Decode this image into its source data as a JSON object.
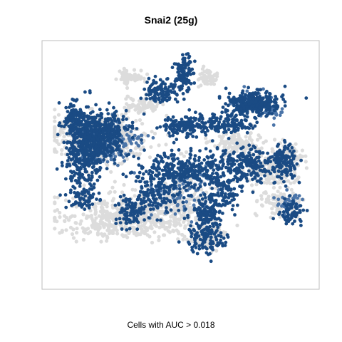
{
  "chart_data": {
    "type": "scatter",
    "title": "Snai2 (25g)",
    "caption": "Cells with AUC > 0.018",
    "xlabel": "",
    "ylabel": "",
    "axes_visible": false,
    "grid": false,
    "colors": {
      "high": "#1a4b84",
      "mid": "#4a74a8",
      "low": "#dcdcdc",
      "frame": "#bdbdbd"
    },
    "series": [
      {
        "color": "#dcdcdc",
        "regions": [
          [
            0.18,
            0.38,
            0.16,
            0.08,
            500
          ],
          [
            0.3,
            0.72,
            0.22,
            0.08,
            600
          ],
          [
            0.5,
            0.62,
            0.08,
            0.12,
            150
          ],
          [
            0.72,
            0.4,
            0.08,
            0.05,
            120
          ],
          [
            0.85,
            0.52,
            0.08,
            0.06,
            160
          ],
          [
            0.88,
            0.66,
            0.06,
            0.05,
            100
          ],
          [
            0.6,
            0.8,
            0.06,
            0.06,
            110
          ],
          [
            0.35,
            0.24,
            0.06,
            0.03,
            80
          ],
          [
            0.3,
            0.12,
            0.04,
            0.03,
            60
          ],
          [
            0.6,
            0.12,
            0.04,
            0.03,
            60
          ],
          [
            0.92,
            0.46,
            0.04,
            0.04,
            60
          ]
        ]
      },
      {
        "color": "#4a74a8",
        "regions": [
          [
            0.22,
            0.4,
            0.1,
            0.08,
            150
          ],
          [
            0.75,
            0.23,
            0.05,
            0.04,
            60
          ],
          [
            0.92,
            0.66,
            0.05,
            0.04,
            40
          ],
          [
            0.85,
            0.26,
            0.04,
            0.03,
            40
          ],
          [
            0.5,
            0.6,
            0.1,
            0.1,
            80
          ]
        ]
      },
      {
        "color": "#1a4b84",
        "regions": [
          [
            0.12,
            0.44,
            0.06,
            0.14,
            400
          ],
          [
            0.2,
            0.36,
            0.08,
            0.08,
            350
          ],
          [
            0.08,
            0.3,
            0.04,
            0.06,
            120
          ],
          [
            0.78,
            0.23,
            0.08,
            0.04,
            330
          ],
          [
            0.51,
            0.1,
            0.03,
            0.06,
            110
          ],
          [
            0.42,
            0.18,
            0.06,
            0.04,
            110
          ],
          [
            0.52,
            0.33,
            0.08,
            0.04,
            150
          ],
          [
            0.68,
            0.32,
            0.08,
            0.04,
            110
          ],
          [
            0.5,
            0.52,
            0.15,
            0.06,
            300
          ],
          [
            0.75,
            0.5,
            0.14,
            0.07,
            260
          ],
          [
            0.9,
            0.48,
            0.04,
            0.06,
            110
          ],
          [
            0.6,
            0.7,
            0.05,
            0.06,
            130
          ],
          [
            0.4,
            0.62,
            0.1,
            0.08,
            160
          ],
          [
            0.6,
            0.82,
            0.06,
            0.06,
            110
          ],
          [
            0.93,
            0.7,
            0.04,
            0.04,
            70
          ],
          [
            0.3,
            0.7,
            0.05,
            0.05,
            80
          ],
          [
            0.12,
            0.65,
            0.05,
            0.04,
            50
          ],
          [
            0.66,
            0.62,
            0.05,
            0.05,
            70
          ]
        ]
      }
    ]
  }
}
